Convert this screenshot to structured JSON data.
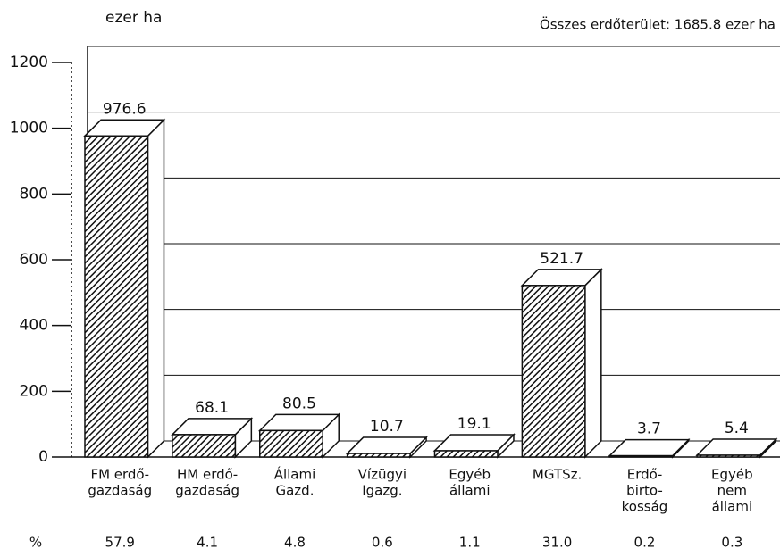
{
  "chart_data": {
    "type": "bar3d",
    "y_label": "ezer ha",
    "annotation": "Összes erdőterület: 1685.8 ezer ha",
    "categories": [
      [
        "FM erdő-",
        "gazdaság"
      ],
      [
        "HM erdő-",
        "gazdaság"
      ],
      [
        "Állami",
        "Gazd."
      ],
      [
        "Vízügyi",
        "Igazg."
      ],
      [
        "Egyéb",
        "állami"
      ],
      [
        "MGTSz."
      ],
      [
        "Erdő-",
        "birto-",
        "kosság"
      ],
      [
        "Egyéb",
        "nem",
        "állami"
      ]
    ],
    "values": [
      976.6,
      68.1,
      80.5,
      10.7,
      19.1,
      521.7,
      3.7,
      5.4
    ],
    "percent_label": "%",
    "percent_values": [
      57.9,
      4.1,
      4.8,
      0.6,
      1.1,
      31.0,
      0.2,
      0.3
    ],
    "percent_value_labels": [
      "57.9",
      "4.1",
      "4.8",
      "0.6",
      "1.1",
      "31.0",
      "0.2",
      "0.3"
    ],
    "color": "#111111",
    "ylim": [
      0,
      1200
    ],
    "yticks": [
      0,
      200,
      400,
      600,
      800,
      1000,
      1200
    ],
    "grid": true
  }
}
